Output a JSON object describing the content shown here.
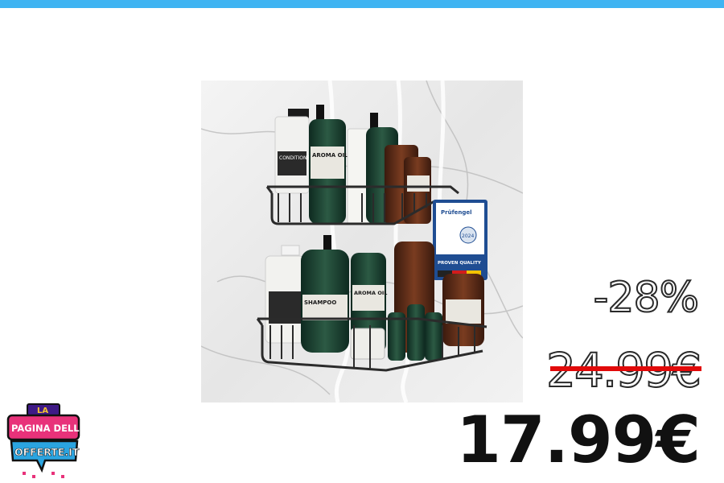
{
  "header": {
    "accent": "#3fb4f2"
  },
  "product": {
    "image": "corner-shower-caddy-photo"
  },
  "pricing": {
    "discount": "-28%",
    "old_price": "24.99€",
    "new_price": "17.99€",
    "strike_color": "#e10a0a"
  },
  "logo": {
    "line1": "LA",
    "line2": "PAGINA DELLE",
    "line3": "OFFERTE.IT"
  },
  "photo_labels": {
    "conditioner": "CONDITIONER",
    "aroma_oil": "AROMA OIL",
    "shampoo": "SHAMPOO",
    "badge_title": "Prüfengel",
    "badge_year": "2024",
    "badge_quality": "PROVEN QUALITY"
  }
}
